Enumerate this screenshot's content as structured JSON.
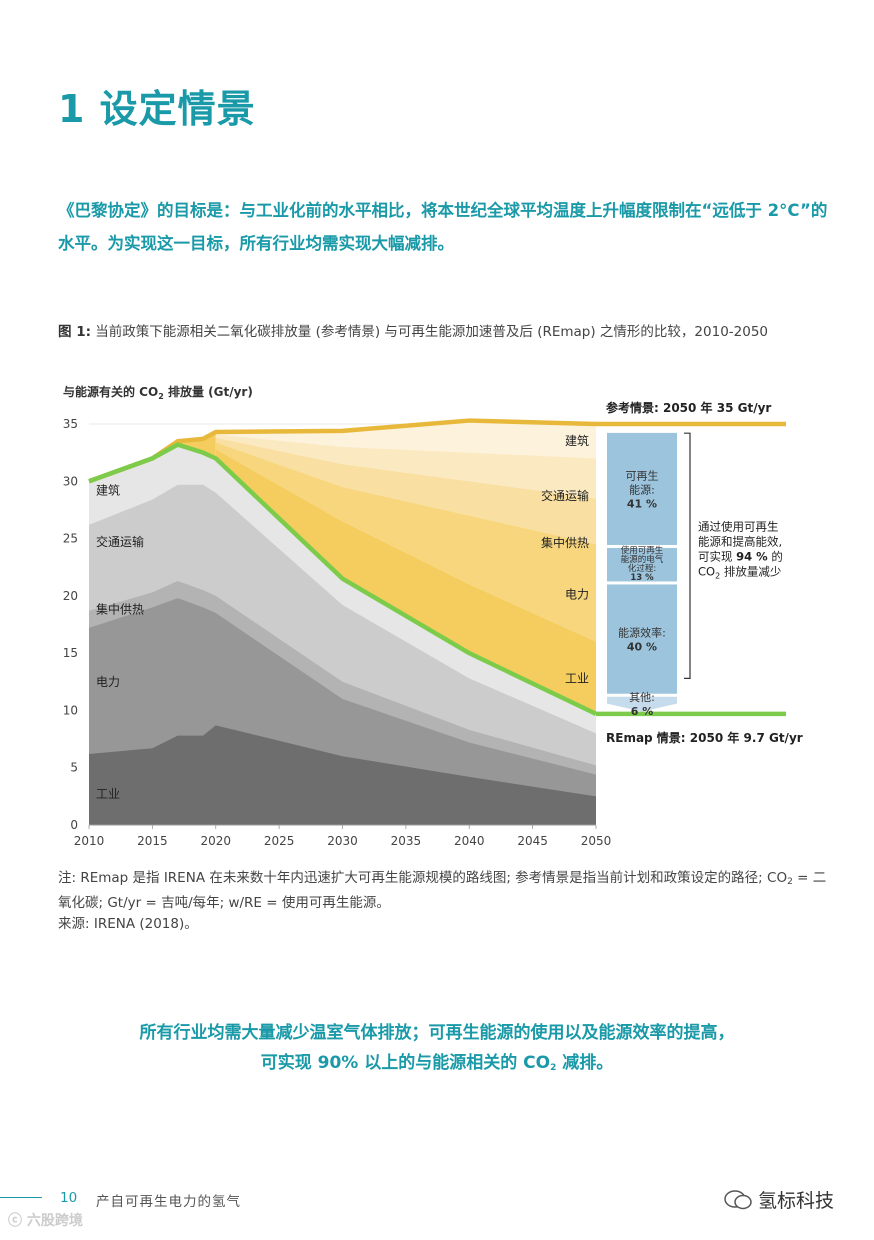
{
  "title": "1 设定情景",
  "intro": "《巴黎协定》的目标是：与工业化前的水平相比，将本世纪全球平均温度上升幅度限制在“远低于 2°C”的水平。为实现这一目标，所有行业均需实现大幅减排。",
  "figure": {
    "label": "图 1:",
    "caption": "当前政策下能源相关二氧化碳排放量 (参考情景) 与可再生能源加速普及后 (REmap) 之情形的比较，2010-2050"
  },
  "notes": {
    "note_a": "注: REmap 是指 IRENA 在未来数十年内迅速扩大可再生能源规模的路线图; 参考情景是指当前计划和政策设定的路径; CO",
    "note_sub": "2",
    "note_b": " = 二氧化碳; Gt/yr = 吉吨/每年; w/RE = 使用可再生能源。",
    "source": "来源: IRENA (2018)。"
  },
  "bottom_quote": {
    "line1": "所有行业均需大量减少温室气体排放；可再生能源的使用以及能源效率的提高，",
    "line2_a": "可实现 90% 以上的与能源相关的 CO",
    "line2_sub": "2",
    "line2_b": " 减排。"
  },
  "footer": {
    "page": "10",
    "title": "产自可再生电力的氢气"
  },
  "watermarks": {
    "left": "六股跨境",
    "right": "氢标科技"
  },
  "chart_data": {
    "type": "area",
    "ylabel_a": "与能源有关的 CO",
    "ylabel_sub": "2",
    "ylabel_b": " 排放量 (Gt/yr)",
    "ylim": [
      0,
      35
    ],
    "xlim": [
      2010,
      2050
    ],
    "x_ticks": [
      2010,
      2015,
      2020,
      2025,
      2030,
      2035,
      2040,
      2045,
      2050
    ],
    "y_ticks": [
      0,
      5,
      10,
      15,
      20,
      25,
      30,
      35
    ],
    "remap_series": {
      "x": [
        2010,
        2015,
        2017,
        2019,
        2020,
        2030,
        2040,
        2050
      ],
      "industry": [
        6.2,
        6.7,
        7.8,
        7.8,
        8.7,
        6.0,
        4.2,
        2.5
      ],
      "power": [
        17.2,
        19.0,
        19.8,
        19.0,
        18.5,
        11.0,
        7.2,
        4.4
      ],
      "heat": [
        18.7,
        20.3,
        21.3,
        20.5,
        20.0,
        12.5,
        8.3,
        5.2
      ],
      "transport": [
        26.2,
        28.4,
        29.7,
        29.7,
        29.0,
        19.2,
        12.8,
        8.0
      ],
      "buildings": [
        30.0,
        32.0,
        33.2,
        32.5,
        32.0,
        21.5,
        15.0,
        9.7
      ]
    },
    "reference_series": {
      "x": [
        2010,
        2015,
        2017,
        2019,
        2020,
        2030,
        2040,
        2050
      ],
      "total": [
        30.0,
        32.0,
        33.5,
        33.7,
        34.3,
        34.4,
        35.3,
        35.0
      ]
    },
    "reduction_bands": {
      "x": [
        2020,
        2030,
        2040,
        2050
      ],
      "other": [
        32.0,
        23.5,
        18.0,
        13.5
      ],
      "efficiency": [
        32.8,
        26.5,
        21.0,
        16.0
      ],
      "renew_power": [
        33.4,
        29.5,
        27.0,
        24.5
      ],
      "heat_band": [
        33.8,
        31.5,
        30.0,
        28.5
      ],
      "transport_band": [
        34.1,
        33.0,
        32.5,
        32.0
      ]
    },
    "colors": {
      "industry": "#6e6e6e",
      "power": "#979797",
      "heat": "#b3b3b3",
      "transport": "#cccccc",
      "buildings": "#e6e6e6",
      "reference_line": "#e8b83a",
      "remap_line": "#7ccb4a",
      "band_other": "#f4cd5e",
      "band_efficiency": "#f7d67d",
      "band_renew": "#f9e0a2",
      "band_heat": "#fbe9c1",
      "band_transport": "#fdf2dc",
      "bar_blue": "#9cc4dd",
      "bar_light": "#c6dcec"
    },
    "left_sector_labels": [
      "建筑",
      "交通运输",
      "集中供热",
      "电力",
      "工业"
    ],
    "right_sector_labels": [
      "建筑",
      "交通运输",
      "集中供热",
      "电力",
      "工业"
    ],
    "reference_label": "参考情景: 2050 年 35 Gt/yr",
    "remap_label": "REmap 情景: 2050 年 9.7 Gt/yr",
    "breakdown": [
      {
        "label_a": "可再生",
        "label_b": "能源:",
        "value": "41 %"
      },
      {
        "label_a": "使用可再生",
        "label_b": "能源的电气",
        "label_c": "化过程:",
        "value": "13 %"
      },
      {
        "label_a": "能源效率:",
        "value": "40 %"
      },
      {
        "label_a": "其他:",
        "value": "6 %"
      }
    ],
    "summary_a": "通过使用可再生",
    "summary_b": "能源和提高能效,",
    "summary_c_pre": "可实现 ",
    "summary_c_bold": "94 %",
    "summary_c_post": " 的",
    "summary_d_pre": "CO",
    "summary_d_sub": "2",
    "summary_d_post": " 排放量减少"
  }
}
